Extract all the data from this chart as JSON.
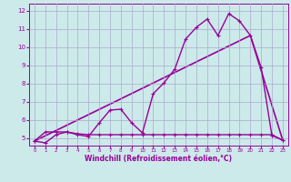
{
  "title": "",
  "xlabel": "Windchill (Refroidissement éolien,°C)",
  "background_color": "#cceaea",
  "grid_color": "#aaaacc",
  "line_color": "#990099",
  "xlim": [
    -0.5,
    23.5
  ],
  "ylim": [
    4.6,
    12.4
  ],
  "xticks": [
    0,
    1,
    2,
    3,
    4,
    5,
    6,
    7,
    8,
    9,
    10,
    11,
    12,
    13,
    14,
    15,
    16,
    17,
    18,
    19,
    20,
    21,
    22,
    23
  ],
  "yticks": [
    5,
    6,
    7,
    8,
    9,
    10,
    11,
    12
  ],
  "line_noisy_x": [
    0,
    1,
    2,
    3,
    4,
    5,
    6,
    7,
    8,
    9,
    10,
    11,
    12,
    13,
    14,
    15,
    16,
    17,
    18,
    19,
    20,
    21,
    22,
    23
  ],
  "line_noisy_y": [
    4.85,
    4.75,
    5.2,
    5.35,
    5.2,
    5.1,
    5.85,
    6.55,
    6.6,
    5.85,
    5.3,
    7.45,
    8.05,
    8.8,
    10.45,
    11.1,
    11.55,
    10.65,
    11.85,
    11.45,
    10.65,
    8.9,
    5.15,
    4.9
  ],
  "line_flat_x": [
    0,
    1,
    2,
    3,
    4,
    5,
    6,
    7,
    8,
    9,
    10,
    11,
    12,
    13,
    14,
    15,
    16,
    17,
    18,
    19,
    20,
    21,
    22,
    23
  ],
  "line_flat_y": [
    4.85,
    5.35,
    5.35,
    5.35,
    5.25,
    5.2,
    5.2,
    5.2,
    5.2,
    5.2,
    5.2,
    5.2,
    5.2,
    5.2,
    5.2,
    5.2,
    5.2,
    5.2,
    5.2,
    5.2,
    5.2,
    5.2,
    5.2,
    4.9
  ],
  "line_trend_x": [
    0,
    20,
    23
  ],
  "line_trend_y": [
    4.85,
    10.65,
    4.9
  ]
}
